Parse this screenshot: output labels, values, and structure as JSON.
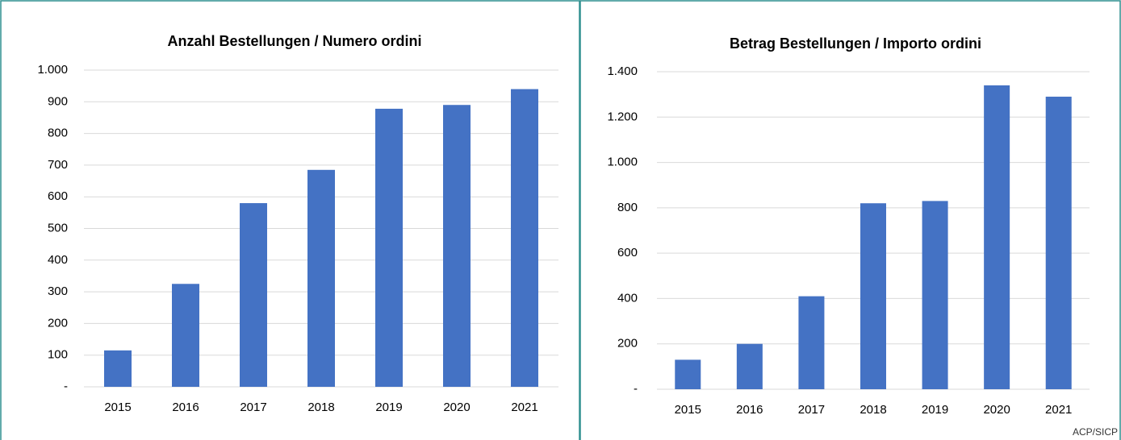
{
  "chart_data": [
    {
      "type": "bar",
      "title": "Anzahl Bestellungen / Numero ordini",
      "categories": [
        "2015",
        "2016",
        "2017",
        "2018",
        "2019",
        "2020",
        "2021"
      ],
      "values": [
        115,
        325,
        580,
        685,
        878,
        890,
        940
      ],
      "color": "#4472c4",
      "ylim": [
        0,
        1000
      ],
      "yticks": [
        {
          "value": 0,
          "label": "-"
        },
        100,
        200,
        300,
        400,
        500,
        600,
        700,
        800,
        900,
        {
          "value": 1000,
          "label": "1.000"
        }
      ],
      "grid": true
    },
    {
      "type": "bar",
      "title": "Betrag Bestellungen / Importo ordini",
      "categories": [
        "2015",
        "2016",
        "2017",
        "2018",
        "2019",
        "2020",
        "2021"
      ],
      "values": [
        130,
        200,
        410,
        820,
        830,
        1340,
        1290
      ],
      "color": "#4472c4",
      "ylim": [
        0,
        1400
      ],
      "yticks": [
        {
          "value": 0,
          "label": "-"
        },
        200,
        400,
        600,
        800,
        {
          "value": 1000,
          "label": "1.000"
        },
        {
          "value": 1200,
          "label": "1.200"
        },
        {
          "value": 1400,
          "label": "1.400"
        }
      ],
      "grid": true
    }
  ],
  "source": "ACP/SICP"
}
